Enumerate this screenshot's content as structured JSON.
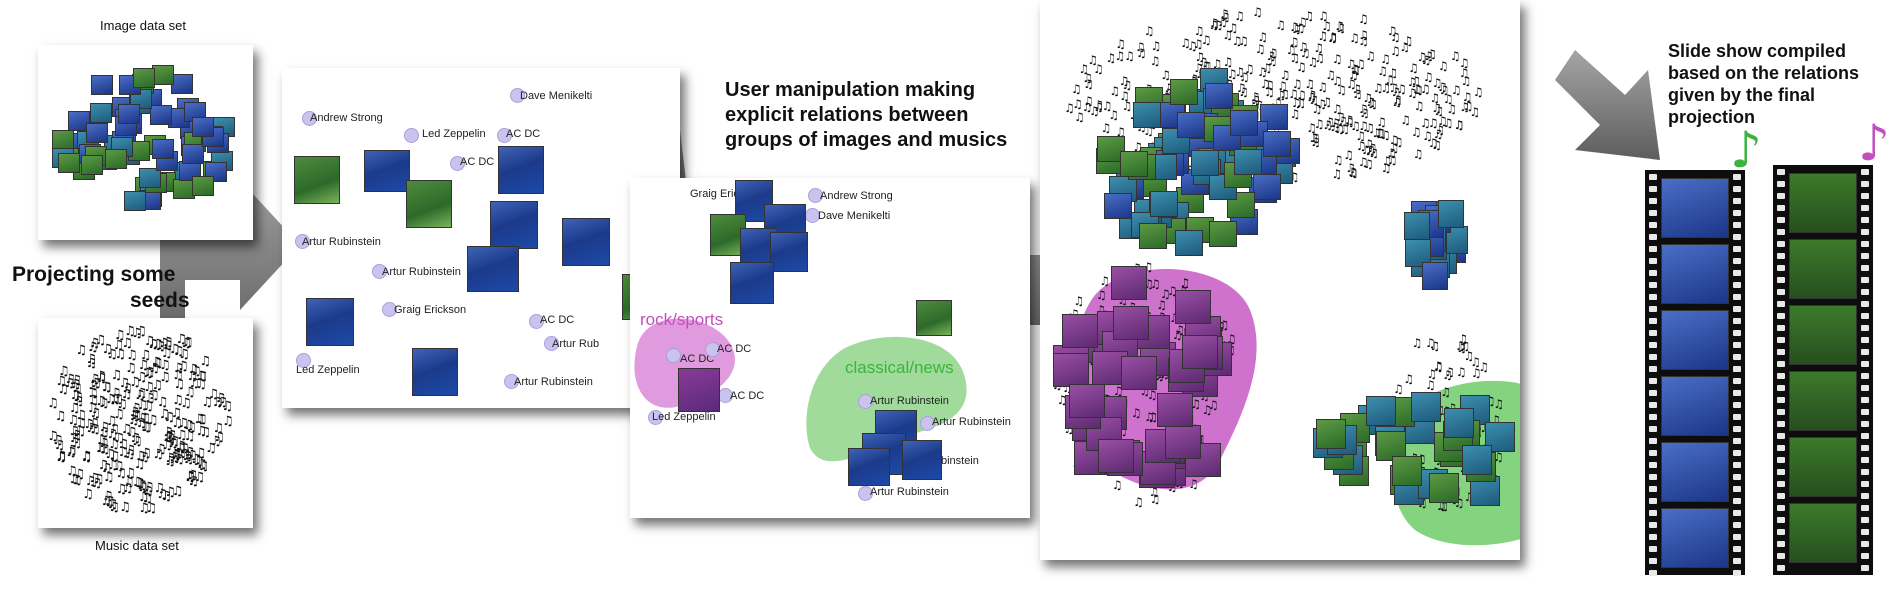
{
  "captions": {
    "image_data_set": "Image data set",
    "music_data_set": "Music data set",
    "projecting_line1": "Projecting some",
    "projecting_line2": "seeds",
    "user_line1": "User manipulation making",
    "user_line2": "explicit relations between",
    "user_line3": "groups of images and musics",
    "slide_line1": "Slide show compiled",
    "slide_line2": "based on the relations",
    "slide_line3": "given by the final",
    "slide_line4": "projection"
  },
  "seed_panel": {
    "labels": [
      "Andrew Strong",
      "Led Zeppelin",
      "AC DC",
      "AC DC",
      "Dave Menikelti",
      "Artur Rubinstein",
      "Artur Rubinstein",
      "Graig Erickson",
      "AC DC",
      "Artur Rub",
      "Led Zeppelin",
      "Artur Rubinstein"
    ]
  },
  "manip_panel": {
    "labels": [
      "Graig Ericks",
      "Andrew Strong",
      "Dave Menikelti",
      "AC DC",
      "AC DC",
      "AC DC",
      "Led Zeppelin",
      "Artur Rubinstein",
      "Artur Rubinstein",
      "Artur Rubinstein",
      "Artur Rubinstein"
    ],
    "group_rock": "rock/sports",
    "group_classical": "classical/news"
  },
  "colors": {
    "rock": "#c24fc0",
    "classical": "#3cb33c",
    "arrow": "#8a8a8a"
  }
}
